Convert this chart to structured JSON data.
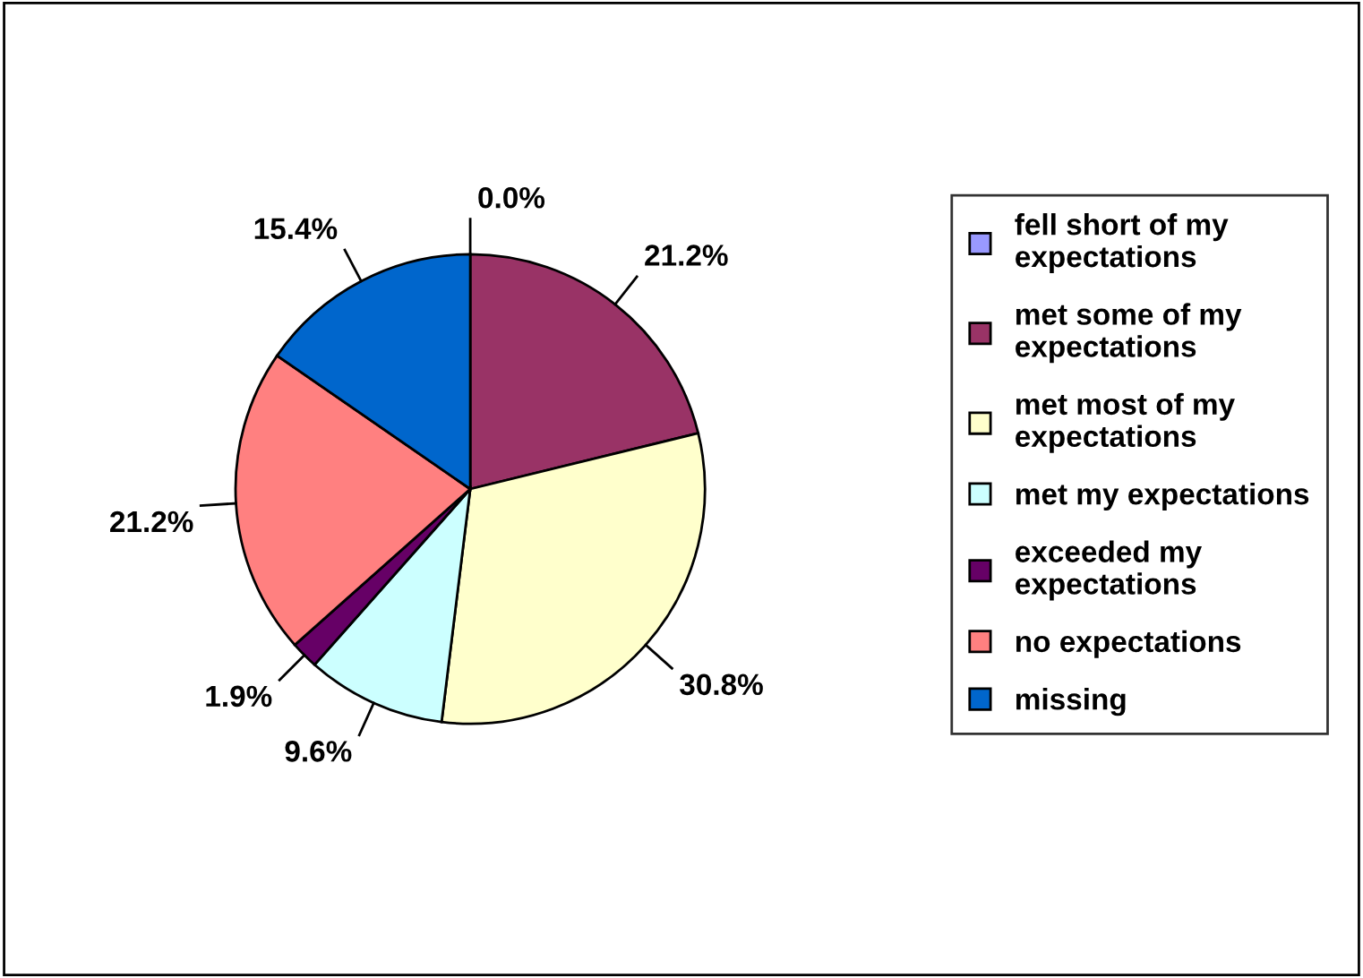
{
  "chart_data": {
    "type": "pie",
    "categories": [
      "fell short of my expectations",
      "met some of my expectations",
      "met most of my expectations",
      "met my expectations",
      "exceeded my expectations",
      "no expectations",
      "missing"
    ],
    "values": [
      0.0,
      21.2,
      30.8,
      9.6,
      1.9,
      21.2,
      15.4
    ],
    "colors": [
      "#9999ff",
      "#993366",
      "#ffffcc",
      "#ccffff",
      "#660066",
      "#ff8080",
      "#0066cc"
    ],
    "value_labels": [
      "0.0%",
      "21.2%",
      "30.8%",
      "9.6%",
      "1.9%",
      "21.2%",
      "15.4%"
    ],
    "legend": "right"
  }
}
